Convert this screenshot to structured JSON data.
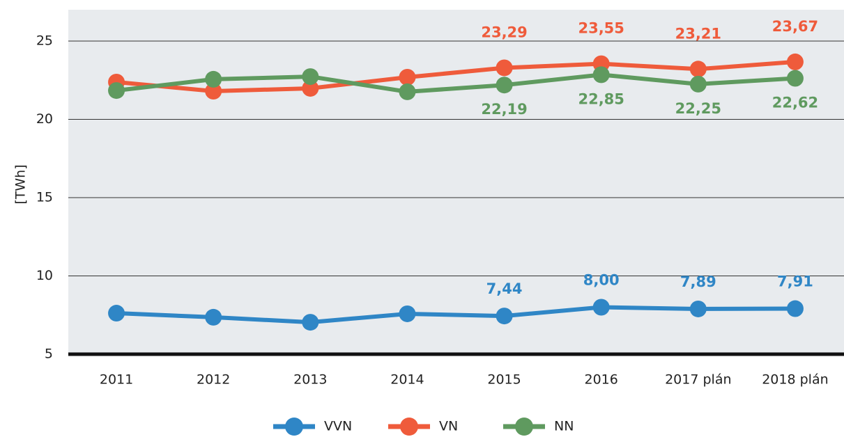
{
  "chart_data": {
    "type": "line",
    "y_label": "[TWh]",
    "categories": [
      "2011",
      "2012",
      "2013",
      "2014",
      "2015",
      "2016",
      "2017 plán",
      "2018 plán"
    ],
    "series": [
      {
        "name": "VVN",
        "color": "#2f86c6",
        "values": [
          7.62,
          7.36,
          7.04,
          7.58,
          7.44,
          8.0,
          7.89,
          7.91
        ],
        "value_labels": [
          null,
          null,
          null,
          null,
          "7,44",
          "8,00",
          "7,89",
          "7,91"
        ]
      },
      {
        "name": "VN",
        "color": "#ef5b3b",
        "values": [
          22.38,
          21.8,
          21.98,
          22.69,
          23.29,
          23.55,
          23.21,
          23.67
        ],
        "value_labels": [
          null,
          null,
          null,
          null,
          "23,29",
          "23,55",
          "23,21",
          "23,67"
        ]
      },
      {
        "name": "NN",
        "color": "#5f9a5f",
        "values": [
          21.84,
          22.56,
          22.73,
          21.76,
          22.19,
          22.85,
          22.25,
          22.62
        ],
        "value_labels": [
          null,
          null,
          null,
          null,
          "22,19",
          "22,85",
          "22,25",
          "22,62"
        ]
      }
    ],
    "ylim": [
      5,
      27
    ],
    "yticks": [
      5,
      10,
      15,
      20,
      25
    ],
    "grid": true,
    "legend": "bottom"
  }
}
